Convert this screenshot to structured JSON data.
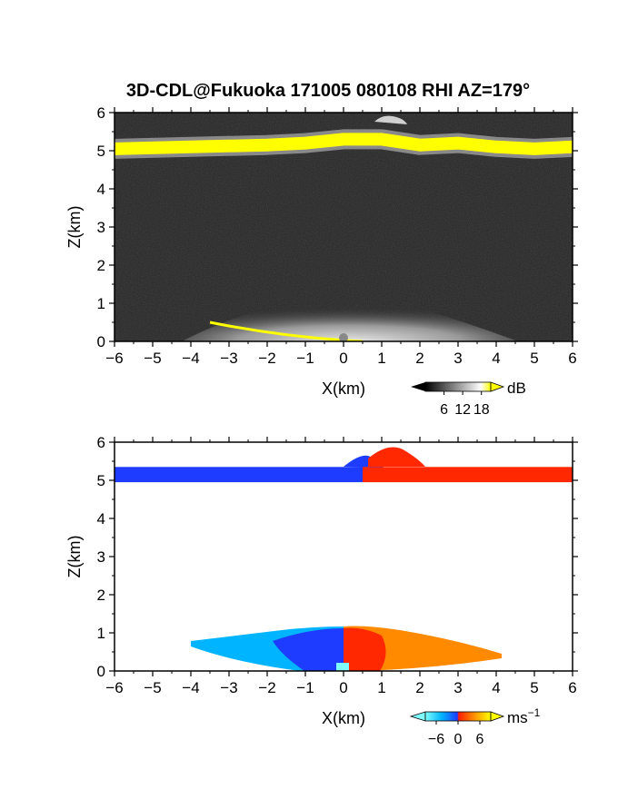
{
  "title": "3D-CDL@Fukuoka 171005 080108 RHI AZ=179°",
  "chart_data": [
    {
      "type": "heatmap",
      "panel": "reflectivity",
      "xlabel": "X(km)",
      "ylabel": "Z(km)",
      "xlim": [
        -6,
        6
      ],
      "ylim": [
        0,
        6
      ],
      "xticks": [
        "−6",
        "−5",
        "−4",
        "−3",
        "−2",
        "−1",
        "0",
        "1",
        "2",
        "3",
        "4",
        "5",
        "6"
      ],
      "yticks": [
        "0",
        "1",
        "2",
        "3",
        "4",
        "5",
        "6"
      ],
      "colorbar": {
        "unit": "dB",
        "ticks": [
          "6",
          "12",
          "18"
        ],
        "range": [
          0,
          21
        ],
        "colors": [
          "#000000",
          "#ffffff",
          "#ffff00"
        ]
      },
      "features": [
        {
          "name": "layer",
          "x": [
            -6,
            -4,
            -2,
            -1,
            0,
            1,
            2,
            3,
            4,
            5,
            6
          ],
          "z": [
            5.05,
            5.1,
            5.15,
            5.2,
            5.3,
            5.3,
            5.15,
            5.2,
            5.1,
            5.05,
            5.1
          ],
          "value": 21
        },
        {
          "name": "near-ground",
          "x": [
            -3.5,
            0.5
          ],
          "z": [
            0.5,
            0.0
          ],
          "value": 21
        },
        {
          "name": "echo",
          "x": [
            -4,
            4
          ],
          "z": [
            0,
            1.2
          ],
          "value": 12
        }
      ]
    },
    {
      "type": "heatmap",
      "panel": "velocity",
      "xlabel": "X(km)",
      "ylabel": "Z(km)",
      "xlim": [
        -6,
        6
      ],
      "ylim": [
        0,
        6
      ],
      "xticks": [
        "−6",
        "−5",
        "−4",
        "−3",
        "−2",
        "−1",
        "0",
        "1",
        "2",
        "3",
        "4",
        "5",
        "6"
      ],
      "yticks": [
        "0",
        "1",
        "2",
        "3",
        "4",
        "5",
        "6"
      ],
      "colorbar": {
        "unit": "ms",
        "unit_exponent": "−1",
        "ticks": [
          "−6",
          "0",
          "6"
        ],
        "range": [
          -9,
          9
        ],
        "colors": [
          "#7fffff",
          "#00b4ff",
          "#1e3cff",
          "#ff1e00",
          "#ffa000",
          "#ffff00"
        ]
      },
      "features": [
        {
          "name": "layer-negative",
          "x": [
            -6,
            0.5
          ],
          "z": [
            4.95,
            5.35
          ],
          "value": -7
        },
        {
          "name": "layer-positive",
          "x": [
            0.5,
            6
          ],
          "z": [
            4.95,
            5.35
          ],
          "value": 7
        },
        {
          "name": "boundary-layer-negative",
          "x": [
            -4,
            0
          ],
          "z": [
            0,
            1.0
          ],
          "value": -6
        },
        {
          "name": "boundary-layer-positive",
          "x": [
            0,
            4.2
          ],
          "z": [
            0,
            1.1
          ],
          "value": 6
        }
      ]
    }
  ]
}
